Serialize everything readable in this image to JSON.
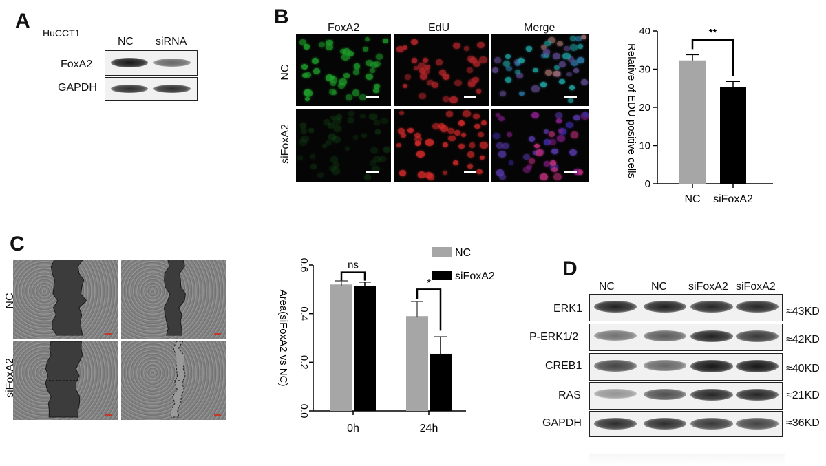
{
  "panelA": {
    "letter": "A",
    "cell_line": "HuCCT1",
    "columns": [
      "NC",
      "siRNA"
    ],
    "rows": [
      {
        "label": "FoxA2",
        "band_intensity": [
          0.95,
          0.6
        ]
      },
      {
        "label": "GAPDH",
        "band_intensity": [
          0.85,
          0.85
        ]
      }
    ]
  },
  "panelB": {
    "letter": "B",
    "columns": [
      "FoxA2",
      "EdU",
      "Merge"
    ],
    "rows": [
      "NC",
      "siFoxA2"
    ]
  },
  "panelC": {
    "letter": "C",
    "rows": [
      "NC",
      "siFoxA2"
    ]
  },
  "panelD": {
    "letter": "D",
    "lanes": [
      "NC",
      "NC",
      "siFoxA2",
      "siFoxA2"
    ],
    "rows": [
      {
        "label": "ERK1",
        "size": "≈43KD",
        "band_intensity": [
          0.9,
          0.9,
          0.88,
          0.88
        ]
      },
      {
        "label": "P-ERK1/2",
        "size": "≈42KD",
        "band_intensity": [
          0.55,
          0.65,
          0.9,
          0.8
        ]
      },
      {
        "label": "CREB1",
        "size": "≈40KD",
        "band_intensity": [
          0.75,
          0.6,
          0.95,
          0.95
        ]
      },
      {
        "label": "RAS",
        "size": "≈21KD",
        "band_intensity": [
          0.4,
          0.7,
          0.88,
          0.88
        ]
      },
      {
        "label": "GAPDH",
        "size": "≈36KD",
        "band_intensity": [
          0.85,
          0.85,
          0.8,
          0.75
        ]
      }
    ]
  },
  "colors": {
    "nc_bar": "#a6a6a6",
    "si_bar": "#000000"
  },
  "chart_data": [
    {
      "type": "bar",
      "categories": [
        "NC",
        "siFoxA2"
      ],
      "values": [
        32.3,
        25.3
      ],
      "errors": [
        1.5,
        1.5
      ],
      "ylabel": "Relative of EDU positive cells",
      "ylim": [
        0,
        40
      ],
      "yticks": [
        "0",
        "10",
        "20",
        "30",
        "40"
      ],
      "significance": "**",
      "colors": [
        "#a6a6a6",
        "#000000"
      ]
    },
    {
      "type": "bar",
      "categories": [
        "0h",
        "24h"
      ],
      "series": [
        {
          "name": "NC",
          "values": [
            0.52,
            0.39
          ],
          "errors": [
            0.015,
            0.06
          ]
        },
        {
          "name": "siFoxA2",
          "values": [
            0.515,
            0.235
          ],
          "errors": [
            0.015,
            0.07
          ]
        }
      ],
      "ylabel": "Area(siFoxA2 vs NC)",
      "ylim": [
        0,
        0.6
      ],
      "yticks": [
        "0.0",
        "0.2",
        "0.4",
        "0.6"
      ],
      "significance": [
        "ns",
        "*"
      ],
      "legend": "top-right",
      "colors": [
        "#a6a6a6",
        "#000000"
      ]
    }
  ]
}
